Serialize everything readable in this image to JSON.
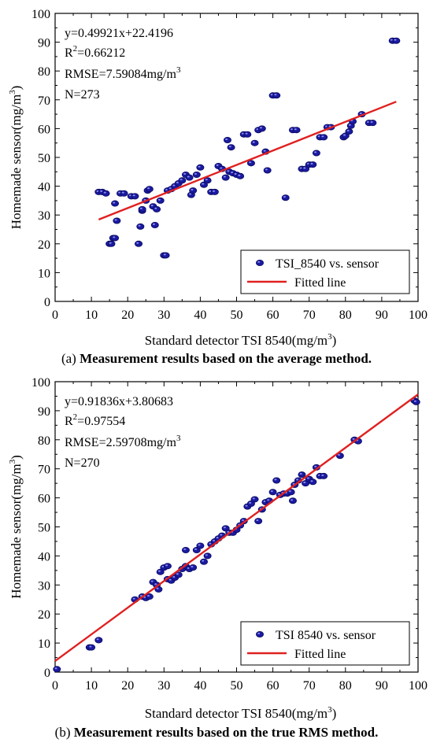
{
  "chart_data": [
    {
      "type": "scatter",
      "panel_label": "(a)",
      "caption": "Measurement results based on the average method.",
      "xlabel": "Standard detector TSI 8540(mg/m",
      "xlabel_sup": "3",
      "xlabel_end": ")",
      "ylabel": "Homemade sensor(mg/m",
      "ylabel_sup": "3",
      "ylabel_end": ")",
      "xlim": [
        0,
        100
      ],
      "ylim": [
        0,
        100
      ],
      "xticks": [
        0,
        10,
        20,
        30,
        40,
        50,
        60,
        70,
        80,
        90,
        100
      ],
      "yticks": [
        0,
        10,
        20,
        30,
        40,
        50,
        60,
        70,
        80,
        90,
        100
      ],
      "grid": false,
      "legend_position": "bottom-right",
      "annotations": {
        "equation": "y=0.49921x+22.4196",
        "r2_prefix": "R",
        "r2_sup": "2",
        "r2_value": "=0.66212",
        "rmse": "RMSE=7.59084mg/m",
        "rmse_sup": "3",
        "n": "N=273"
      },
      "series": [
        {
          "name": "TSI_8540 vs. sensor",
          "kind": "scatter",
          "color": "#1a1aa0",
          "points": [
            [
              12,
              38
            ],
            [
              13,
              38
            ],
            [
              14,
              37.5
            ],
            [
              15,
              20
            ],
            [
              15.5,
              20
            ],
            [
              16,
              22
            ],
            [
              16.5,
              22
            ],
            [
              17,
              28
            ],
            [
              16.5,
              34
            ],
            [
              18,
              37.5
            ],
            [
              19,
              37.5
            ],
            [
              21,
              36.5
            ],
            [
              22,
              36.5
            ],
            [
              23,
              20
            ],
            [
              23.5,
              26
            ],
            [
              24,
              31.5
            ],
            [
              24,
              32
            ],
            [
              25,
              35
            ],
            [
              25.5,
              38.5
            ],
            [
              26,
              39
            ],
            [
              27,
              33
            ],
            [
              27.5,
              26.5
            ],
            [
              28,
              32
            ],
            [
              29,
              35
            ],
            [
              30,
              16
            ],
            [
              30.5,
              16
            ],
            [
              31,
              38.5
            ],
            [
              32,
              39
            ],
            [
              33,
              40
            ],
            [
              34,
              41
            ],
            [
              35,
              42
            ],
            [
              36,
              44
            ],
            [
              37,
              43
            ],
            [
              37.5,
              37
            ],
            [
              38,
              38.5
            ],
            [
              39,
              44
            ],
            [
              40,
              46.5
            ],
            [
              41,
              40.5
            ],
            [
              42,
              42
            ],
            [
              43,
              38
            ],
            [
              44,
              38
            ],
            [
              45,
              47
            ],
            [
              46,
              46
            ],
            [
              47,
              43
            ],
            [
              47.5,
              56
            ],
            [
              48,
              45
            ],
            [
              48.5,
              53.5
            ],
            [
              49,
              44.5
            ],
            [
              50,
              44
            ],
            [
              51,
              43.5
            ],
            [
              52,
              58
            ],
            [
              53,
              58
            ],
            [
              54,
              48
            ],
            [
              55,
              55
            ],
            [
              56,
              59.5
            ],
            [
              57,
              60
            ],
            [
              58,
              52
            ],
            [
              58.5,
              45.5
            ],
            [
              60,
              71.5
            ],
            [
              61,
              71.5
            ],
            [
              63.5,
              36
            ],
            [
              65.5,
              59.5
            ],
            [
              66.5,
              59.5
            ],
            [
              68,
              46
            ],
            [
              69,
              46
            ],
            [
              70,
              47.5
            ],
            [
              71,
              47.5
            ],
            [
              72,
              51.5
            ],
            [
              73,
              57
            ],
            [
              74,
              57
            ],
            [
              75,
              60.5
            ],
            [
              76,
              60.5
            ],
            [
              79.5,
              57
            ],
            [
              80,
              57.5
            ],
            [
              81,
              59
            ],
            [
              81.5,
              61
            ],
            [
              82,
              62.5
            ],
            [
              84.5,
              65
            ],
            [
              86.5,
              62
            ],
            [
              87.5,
              62
            ],
            [
              93,
              90.5
            ],
            [
              94,
              90.5
            ]
          ]
        },
        {
          "name": "Fitted line",
          "kind": "line",
          "color": "#e02020",
          "slope": 0.49921,
          "intercept": 22.4196,
          "x_range": [
            12,
            94
          ]
        }
      ]
    },
    {
      "type": "scatter",
      "panel_label": "(b)",
      "caption": "Measurement results based on the true RMS method.",
      "xlabel": "Standard detector TSI 8540(mg/m",
      "xlabel_sup": "3",
      "xlabel_end": ")",
      "ylabel": "Homemade sensor(mg/m",
      "ylabel_sup": "3",
      "ylabel_end": ")",
      "xlim": [
        0,
        100
      ],
      "ylim": [
        0,
        100
      ],
      "xticks": [
        0,
        10,
        20,
        30,
        40,
        50,
        60,
        70,
        80,
        90,
        100
      ],
      "yticks": [
        0,
        10,
        20,
        30,
        40,
        50,
        60,
        70,
        80,
        90,
        100
      ],
      "grid": false,
      "legend_position": "bottom-right",
      "annotations": {
        "equation": "y=0.91836x+3.80683",
        "r2_prefix": "R",
        "r2_sup": "2",
        "r2_value": "=0.97554",
        "rmse": "RMSE=2.59708mg/m",
        "rmse_sup": "3",
        "n": "N=270"
      },
      "series": [
        {
          "name": "TSI 8540 vs. sensor",
          "kind": "scatter",
          "color": "#1a1aa0",
          "points": [
            [
              0.5,
              1
            ],
            [
              9.5,
              8.5
            ],
            [
              10,
              8.5
            ],
            [
              12,
              11
            ],
            [
              22,
              25
            ],
            [
              24,
              26
            ],
            [
              25,
              25.5
            ],
            [
              26,
              26
            ],
            [
              27,
              31
            ],
            [
              28,
              30
            ],
            [
              28.5,
              28.5
            ],
            [
              29,
              34.5
            ],
            [
              30,
              36
            ],
            [
              31,
              36.5
            ],
            [
              31,
              32
            ],
            [
              32,
              31.5
            ],
            [
              33,
              32.5
            ],
            [
              34,
              33.5
            ],
            [
              35,
              35.5
            ],
            [
              36,
              42
            ],
            [
              36,
              36.5
            ],
            [
              37,
              35.5
            ],
            [
              38,
              36
            ],
            [
              39,
              42
            ],
            [
              40,
              43.5
            ],
            [
              41,
              38
            ],
            [
              42,
              40
            ],
            [
              43,
              44
            ],
            [
              44,
              45
            ],
            [
              45,
              46
            ],
            [
              46,
              47
            ],
            [
              47,
              49.5
            ],
            [
              48,
              48
            ],
            [
              49,
              48
            ],
            [
              50,
              49
            ],
            [
              51,
              50.5
            ],
            [
              52,
              52
            ],
            [
              53,
              57
            ],
            [
              54,
              58
            ],
            [
              55,
              59.5
            ],
            [
              56,
              52
            ],
            [
              57,
              56
            ],
            [
              58,
              58.5
            ],
            [
              59,
              59
            ],
            [
              60,
              62
            ],
            [
              61,
              66
            ],
            [
              62,
              61
            ],
            [
              63,
              61.5
            ],
            [
              64,
              61.5
            ],
            [
              65,
              62
            ],
            [
              65.5,
              59
            ],
            [
              66,
              64.5
            ],
            [
              67,
              66
            ],
            [
              68,
              68
            ],
            [
              69,
              65
            ],
            [
              70,
              66.5
            ],
            [
              71,
              65.5
            ],
            [
              72,
              70.5
            ],
            [
              73,
              67.5
            ],
            [
              74,
              67.5
            ],
            [
              78.5,
              74.5
            ],
            [
              82.5,
              80
            ],
            [
              83.5,
              79.5
            ],
            [
              99,
              93.5
            ],
            [
              99.5,
              93
            ]
          ]
        },
        {
          "name": "Fitted line",
          "kind": "line",
          "color": "#e02020",
          "slope": 0.91836,
          "intercept": 3.80683,
          "x_range": [
            0,
            100
          ]
        }
      ]
    }
  ]
}
